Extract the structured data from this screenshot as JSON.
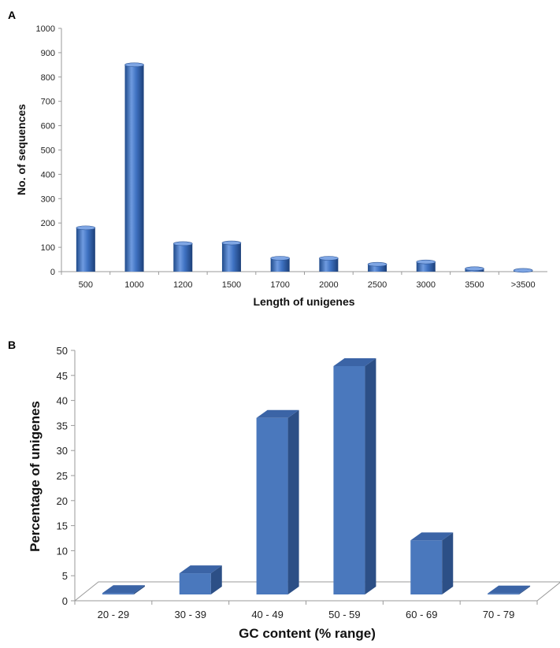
{
  "chart_data": [
    {
      "panel_label": "A",
      "type": "bar",
      "categories": [
        "500",
        "1000",
        "1200",
        "1500",
        "1700",
        "2000",
        "2500",
        "3000",
        "3500",
        ">3500"
      ],
      "values": [
        180,
        850,
        115,
        118,
        55,
        55,
        30,
        40,
        12,
        5
      ],
      "xlabel": "Length of unigenes",
      "ylabel": "No. of sequences",
      "ylim": [
        0,
        1000
      ],
      "yticks": [
        "0",
        "100",
        "200",
        "300",
        "400",
        "500",
        "600",
        "700",
        "800",
        "900",
        "1000"
      ],
      "grid": false,
      "bar_color": "#3a6fbf"
    },
    {
      "panel_label": "B",
      "type": "bar",
      "categories": [
        "20 - 29",
        "30 - 39",
        "40 - 49",
        "50 - 59",
        "60 - 69",
        "70 - 79"
      ],
      "values": [
        0.3,
        4.5,
        37.5,
        48.5,
        11.5,
        0.2
      ],
      "xlabel": "GC content (% range)",
      "ylabel": "Percentage of unigenes",
      "ylim": [
        0,
        50
      ],
      "yticks": [
        "0",
        "5",
        "10",
        "15",
        "20",
        "25",
        "30",
        "35",
        "40",
        "45",
        "50"
      ],
      "grid": false,
      "bar_color": "#4a78bd"
    }
  ]
}
